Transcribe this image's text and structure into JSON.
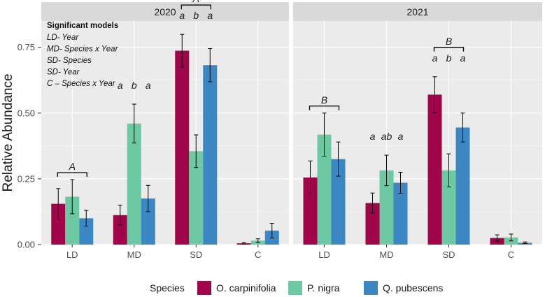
{
  "chart_data": {
    "type": "bar",
    "ylabel": "Relative Abundance",
    "xlabel": "",
    "ylim": [
      0,
      0.85
    ],
    "yticks": [
      0.0,
      0.25,
      0.5,
      0.75
    ],
    "ytick_labels": [
      "0.00",
      "0.25",
      "0.50",
      "0.75"
    ],
    "categories": [
      "LD",
      "MD",
      "SD",
      "C"
    ],
    "legend": {
      "title": "Species",
      "position": "bottom",
      "entries": [
        "O. carpinifolia",
        "P. nigra",
        "Q. pubescens"
      ]
    },
    "colors": {
      "O. carpinifolia": "#A0054A",
      "P. nigra": "#6CC9A4",
      "Q. pubescens": "#3A87C4",
      "panel_bg": "#EBEBEB",
      "grid": "#FFFFFF",
      "strip_bg": "#D9D9D9"
    },
    "panels": [
      {
        "title": "2020",
        "series": [
          {
            "name": "O. carpinifolia",
            "values": [
              0.155,
              0.112,
              0.737,
              0.005
            ],
            "err": [
              0.058,
              0.038,
              0.062,
              0.003
            ]
          },
          {
            "name": "P. nigra",
            "values": [
              0.182,
              0.46,
              0.355,
              0.015
            ],
            "err": [
              0.065,
              0.074,
              0.062,
              0.007
            ]
          },
          {
            "name": "Q. pubescens",
            "values": [
              0.1,
              0.175,
              0.682,
              0.053
            ],
            "err": [
              0.03,
              0.05,
              0.063,
              0.028
            ]
          }
        ],
        "letters": {
          "MD": [
            "a",
            "b",
            "a"
          ],
          "SD": [
            "a",
            "b",
            "a"
          ]
        },
        "brackets": [
          {
            "category": "LD",
            "label": "A"
          },
          {
            "category": "SD",
            "label": "A"
          }
        ],
        "annotation": {
          "title": "Significant models",
          "lines": [
            "LD- Year",
            "MD- Species x Year",
            "SD- Species",
            "SD- Year",
            "C – Species x Year"
          ]
        }
      },
      {
        "title": "2021",
        "series": [
          {
            "name": "O. carpinifolia",
            "values": [
              0.255,
              0.158,
              0.57,
              0.025
            ],
            "err": [
              0.063,
              0.038,
              0.068,
              0.012
            ]
          },
          {
            "name": "P. nigra",
            "values": [
              0.418,
              0.282,
              0.282,
              0.027
            ],
            "err": [
              0.082,
              0.058,
              0.063,
              0.013
            ]
          },
          {
            "name": "Q. pubescens",
            "values": [
              0.325,
              0.235,
              0.445,
              0.007
            ],
            "err": [
              0.065,
              0.04,
              0.055,
              0.003
            ]
          }
        ],
        "letters": {
          "MD": [
            "a",
            "ab",
            "a"
          ],
          "SD": [
            "a",
            "b",
            "a"
          ]
        },
        "brackets": [
          {
            "category": "LD",
            "label": "B"
          },
          {
            "category": "SD",
            "label": "B"
          }
        ]
      }
    ]
  }
}
